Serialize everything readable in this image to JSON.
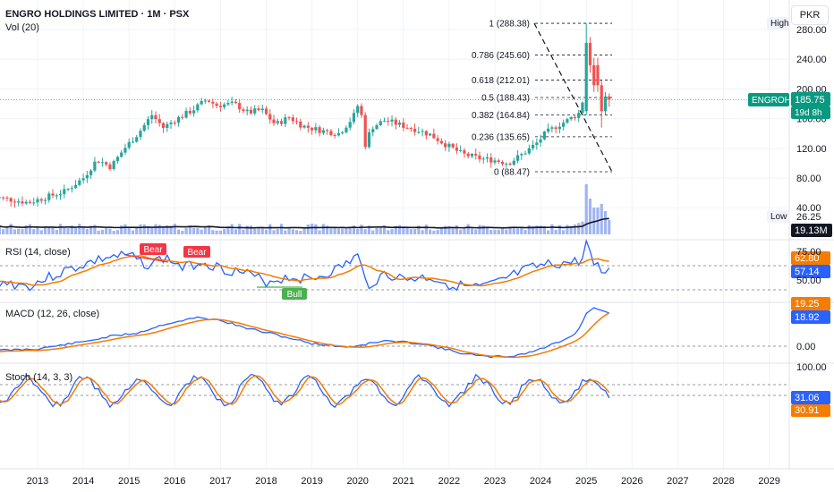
{
  "header": {
    "title": "ENGRO HOLDINGS LIMITED · 1M · PSX",
    "vol_label": "Vol (20)",
    "currency_button": "PKR"
  },
  "colors": {
    "up": "#26a69a",
    "down": "#ef5350",
    "volume": "#90a8f0",
    "blue_line": "#2962ff",
    "orange_line": "#f57c00",
    "black_line": "#131722",
    "grid": "#f0f3fa",
    "bear_tag": "#f23645",
    "bull_tag": "#4caf50",
    "price_tag": "#089981"
  },
  "price_axis": {
    "ticks": [
      "280.00",
      "240.00",
      "200.00",
      "160.00",
      "120.00",
      "80.00",
      "40.00"
    ],
    "ylim": [
      0,
      300
    ]
  },
  "time_axis": {
    "labels": [
      "2013",
      "2014",
      "2015",
      "2016",
      "2017",
      "2018",
      "2019",
      "2020",
      "2021",
      "2022",
      "2023",
      "2024",
      "2025",
      "2026",
      "2027",
      "2028",
      "2029"
    ]
  },
  "fib": {
    "levels": [
      {
        "label": "1 (288.38)",
        "value": 288.38
      },
      {
        "label": "0.786 (245.60)",
        "value": 245.6
      },
      {
        "label": "0.618 (212.01)",
        "value": 212.01
      },
      {
        "label": "0.5 (188.43)",
        "value": 188.43
      },
      {
        "label": "0.382 (164.84)",
        "value": 164.84
      },
      {
        "label": "0.236 (135.65)",
        "value": 135.65
      },
      {
        "label": "0 (88.47)",
        "value": 88.47
      }
    ]
  },
  "tags": {
    "high": "High",
    "low": "Low",
    "low_value": "26.25",
    "symbol": "ENGROH",
    "last_price": "185.75",
    "countdown": "19d 8h",
    "volume_ma": "19.13M"
  },
  "rsi": {
    "label": "RSI (14, close)",
    "value_orange": "62.80",
    "value_blue": "57.14",
    "axis": [
      "75.00",
      "50.00"
    ],
    "bear": "Bear",
    "bull": "Bull"
  },
  "macd": {
    "label": "MACD (12, 26, close)",
    "value_orange": "19.25",
    "value_blue": "18.92",
    "axis": [
      "0.00"
    ]
  },
  "stoch": {
    "label": "Stoch (14, 3, 3)",
    "value_blue": "31.06",
    "value_orange": "30.91",
    "axis": [
      "100.00"
    ]
  }
}
